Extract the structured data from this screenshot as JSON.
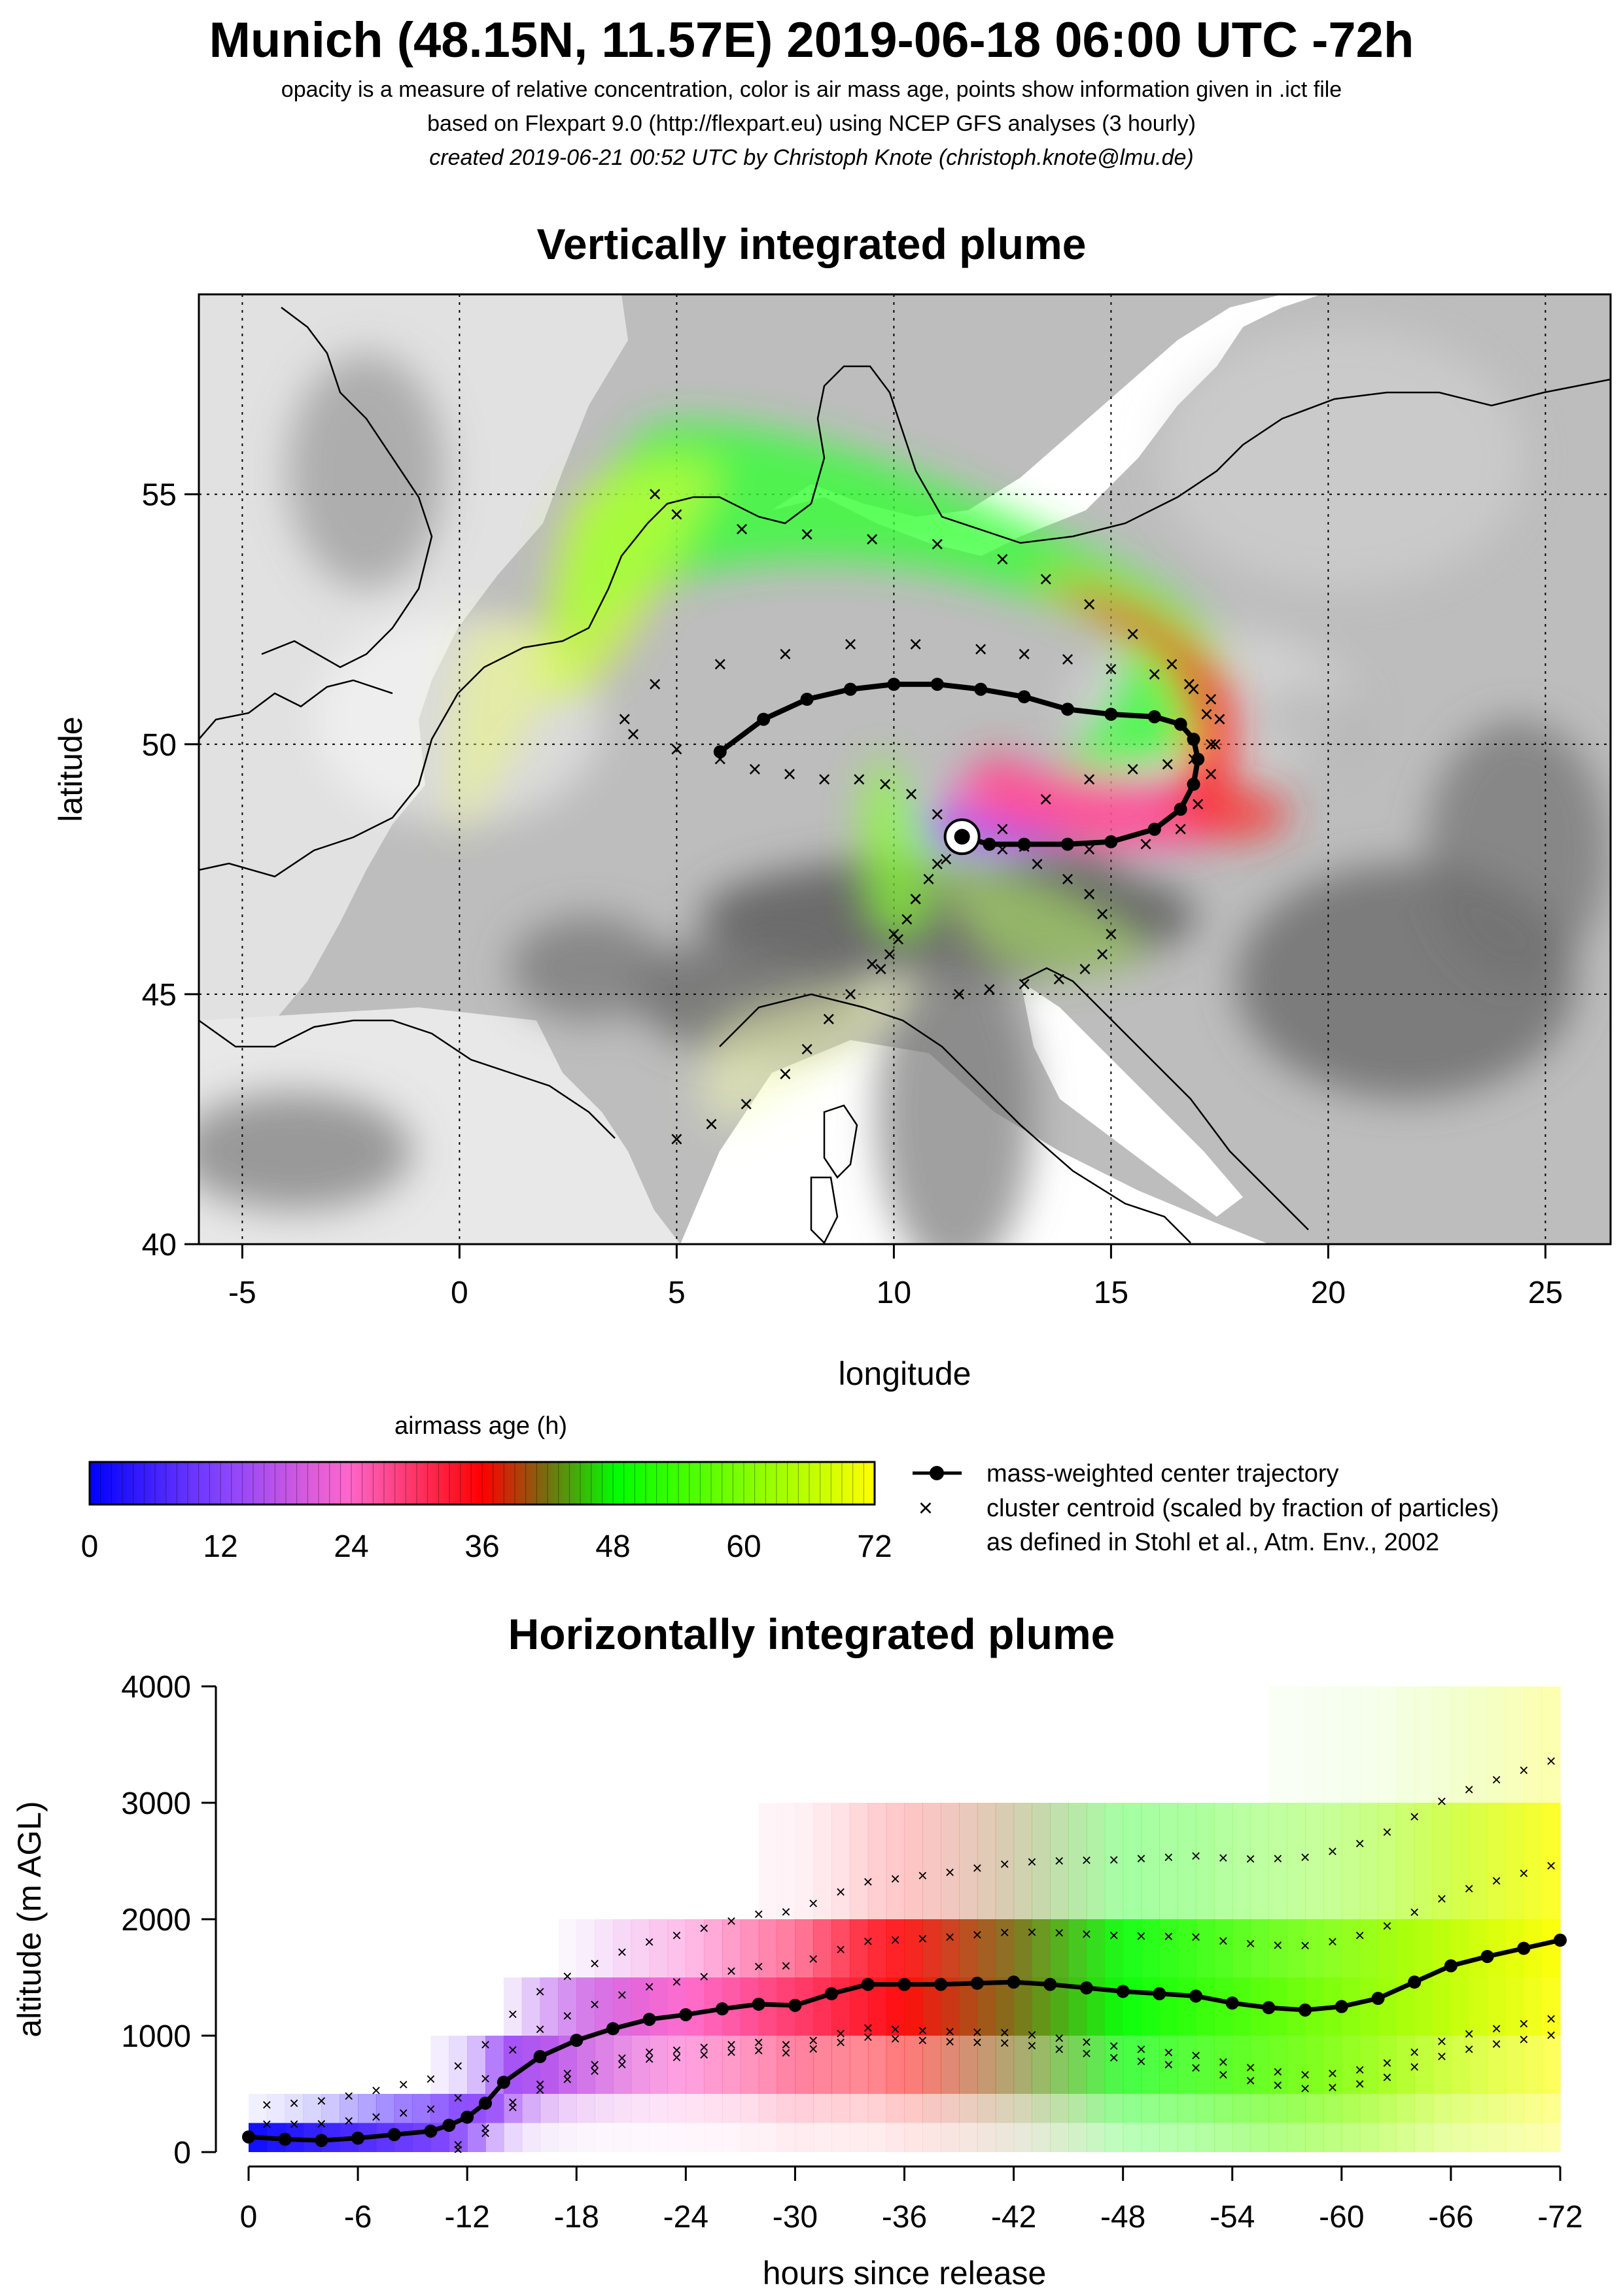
{
  "header": {
    "title": "Munich (48.15N, 11.57E) 2019-06-18 06:00 UTC -72h",
    "line1": "opacity is a measure of relative concentration, color is air mass age, points show information given in .ict file",
    "line2": "based on Flexpart 9.0 (http://flexpart.eu) using NCEP GFS analyses (3 hourly)",
    "line3": "created 2019-06-21 00:52 UTC by Christoph Knote (christoph.knote@lmu.de)"
  },
  "colors": {
    "background_terrain": "#bdbdbd",
    "sea": "#ffffff",
    "age_0": "#0000ff",
    "age_24": "#ff66cc",
    "age_36": "#ff0000",
    "age_48": "#00ff00",
    "age_72": "#ffff00",
    "trajectory": "#000000"
  },
  "chart_data": [
    {
      "type": "scatter",
      "title": "Vertically integrated plume",
      "xlabel": "longitude",
      "ylabel": "latitude",
      "xlim": [
        -6,
        26.5
      ],
      "ylim": [
        40,
        59
      ],
      "xticks": [
        -5,
        0,
        5,
        10,
        15,
        20,
        25
      ],
      "yticks": [
        40,
        45,
        50,
        55
      ],
      "grid": true,
      "release_point": {
        "lon": 11.57,
        "lat": 48.15
      },
      "center_trajectory": {
        "name": "mass-weighted center trajectory",
        "lon": [
          11.57,
          12.2,
          13.0,
          14.0,
          15.0,
          16.0,
          16.6,
          16.9,
          17.0,
          16.9,
          16.6,
          16.0,
          15.0,
          14.0,
          13.0,
          12.0,
          11.0,
          10.0,
          9.0,
          8.0,
          7.0,
          6.0
        ],
        "lat": [
          48.15,
          48.0,
          48.0,
          48.0,
          48.05,
          48.3,
          48.7,
          49.2,
          49.7,
          50.1,
          50.4,
          50.55,
          50.6,
          50.7,
          50.95,
          51.1,
          51.2,
          51.2,
          51.1,
          50.9,
          50.5,
          49.85
        ]
      },
      "cluster_centroids": [
        {
          "lon": [
            11.6,
            13.0,
            14.5,
            15.8,
            16.6,
            17.0,
            17.3,
            17.4,
            17.2,
            16.9,
            16.4,
            15.5,
            14.5,
            13.5,
            12.5,
            11.0,
            9.5,
            8.0,
            6.5,
            5.0,
            4.5
          ],
          "lat": [
            48.1,
            47.95,
            47.9,
            48.0,
            48.3,
            48.8,
            49.4,
            50.0,
            50.6,
            51.1,
            51.6,
            52.2,
            52.8,
            53.3,
            53.7,
            54.0,
            54.1,
            54.2,
            54.3,
            54.6,
            55.0
          ]
        },
        {
          "lon": [
            11.6,
            12.5,
            13.5,
            14.5,
            15.5,
            16.3,
            16.9,
            17.3,
            17.5,
            17.3,
            16.8,
            16.0,
            15.0,
            14.0,
            13.0,
            12.0,
            10.5,
            9.0,
            7.5,
            6.0,
            4.5
          ],
          "lat": [
            48.1,
            48.3,
            48.9,
            49.3,
            49.5,
            49.6,
            49.7,
            50.0,
            50.5,
            50.9,
            51.2,
            51.4,
            51.5,
            51.7,
            51.8,
            51.9,
            52.0,
            52.0,
            51.8,
            51.6,
            51.2
          ]
        },
        {
          "lon": [
            11.6,
            12.5,
            13.3,
            14.0,
            14.5,
            14.8,
            15.0,
            14.8,
            14.4,
            13.8,
            13.0,
            12.2,
            11.5
          ],
          "lat": [
            48.1,
            47.9,
            47.6,
            47.3,
            47.0,
            46.6,
            46.2,
            45.8,
            45.5,
            45.3,
            45.2,
            45.1,
            45.0
          ]
        },
        {
          "lon": [
            11.6,
            11.2,
            10.8,
            10.5,
            10.3,
            10.1,
            9.9,
            9.7
          ],
          "lat": [
            48.1,
            47.7,
            47.3,
            46.9,
            46.5,
            46.1,
            45.8,
            45.5
          ]
        },
        {
          "lon": [
            11.6,
            11.0,
            10.4,
            9.8,
            9.2,
            8.4,
            7.6,
            6.8,
            6.0,
            5.0,
            4.0,
            3.8
          ],
          "lat": [
            48.1,
            48.6,
            49.0,
            49.2,
            49.3,
            49.3,
            49.4,
            49.5,
            49.7,
            49.9,
            50.2,
            50.5
          ]
        },
        {
          "lon": [
            11.6,
            11.0,
            10.5,
            10.0,
            9.5,
            9.0,
            8.5,
            8.0,
            7.5,
            6.6,
            5.8,
            5.0
          ],
          "lat": [
            48.1,
            47.6,
            46.9,
            46.2,
            45.6,
            45.0,
            44.5,
            43.9,
            43.4,
            42.8,
            42.4,
            42.1
          ]
        }
      ]
    },
    {
      "type": "heatmap",
      "title": "Horizontally integrated plume",
      "xlabel": "hours since release",
      "ylabel": "altitude (m AGL)",
      "xlim": [
        0,
        -72
      ],
      "ylim": [
        0,
        4000
      ],
      "xticks": [
        0,
        -6,
        -12,
        -18,
        -24,
        -30,
        -36,
        -42,
        -48,
        -54,
        -60,
        -66,
        -72
      ],
      "yticks": [
        0,
        1000,
        2000,
        3000,
        4000
      ],
      "center_trajectory": {
        "name": "mass-weighted center trajectory",
        "hours": [
          0,
          -2,
          -4,
          -6,
          -8,
          -10,
          -11,
          -12,
          -13,
          -14,
          -16,
          -18,
          -20,
          -22,
          -24,
          -26,
          -28,
          -30,
          -32,
          -34,
          -36,
          -38,
          -40,
          -42,
          -44,
          -46,
          -48,
          -50,
          -52,
          -54,
          -56,
          -58,
          -60,
          -62,
          -64,
          -66,
          -68,
          -70,
          -72
        ],
        "altitude": [
          130,
          110,
          100,
          120,
          150,
          180,
          230,
          300,
          420,
          600,
          820,
          960,
          1060,
          1140,
          1180,
          1230,
          1270,
          1260,
          1360,
          1440,
          1440,
          1440,
          1450,
          1460,
          1440,
          1410,
          1380,
          1360,
          1340,
          1280,
          1240,
          1220,
          1250,
          1320,
          1460,
          1600,
          1680,
          1750,
          1820
        ]
      }
    }
  ],
  "legend": {
    "colorbar_title": "airmass age (h)",
    "colorbar_ticks": [
      "0",
      "12",
      "24",
      "36",
      "48",
      "60",
      "72"
    ],
    "trajectory_label": "mass-weighted center trajectory",
    "cluster_label": "cluster centroid (scaled by fraction of particles)",
    "cluster_note": "as defined in Stohl et al., Atm. Env., 2002"
  }
}
